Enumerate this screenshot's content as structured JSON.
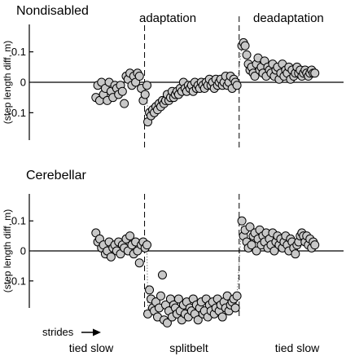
{
  "panel_labels": [
    "Nondisabled",
    "Cerebellar"
  ],
  "phase_labels": {
    "adaptation": "adaptation",
    "deadaptation": "deadaptation"
  },
  "bottom_labels": {
    "tied_slow_1": "tied slow",
    "splitbelt": "splitbelt",
    "tied_slow_2": "tied slow"
  },
  "strides_label": "strides",
  "style": {
    "marker_fill": "#c8c8c8",
    "marker_stroke": "#000000"
  },
  "chart_data": [
    {
      "type": "scatter",
      "title": "Nondisabled",
      "ylabel": "(step length diff, m)",
      "yticks": [
        0.1,
        0,
        -0.1
      ],
      "ytick_labels": [
        "0.1",
        "0",
        "-0.1"
      ],
      "ylim": [
        -0.19,
        0.19
      ],
      "xlim": [
        0,
        100
      ],
      "phase_boundaries": [
        33,
        68
      ],
      "series": [
        {
          "points": [
            [
              15,
              -0.05
            ],
            [
              15.7,
              -0.01
            ],
            [
              16.4,
              -0.06
            ],
            [
              17.1,
              0.0
            ],
            [
              17.8,
              -0.04
            ],
            [
              18.5,
              -0.02
            ],
            [
              19.2,
              -0.06
            ],
            [
              19.9,
              0.0
            ],
            [
              20.6,
              -0.03
            ],
            [
              21.3,
              -0.05
            ],
            [
              22,
              -0.01
            ],
            [
              22.7,
              -0.02
            ],
            [
              23.4,
              -0.04
            ],
            [
              24.1,
              -0.01
            ],
            [
              24.8,
              -0.03
            ],
            [
              25.5,
              -0.07
            ],
            [
              26.2,
              0.02
            ],
            [
              26.9,
              0.01
            ],
            [
              27.6,
              0.03
            ],
            [
              28.3,
              -0.01
            ],
            [
              29,
              0.02
            ],
            [
              29.7,
              0.0
            ],
            [
              30.4,
              0.03
            ],
            [
              31.1,
              0.02
            ],
            [
              31.8,
              -0.02
            ],
            [
              32.5,
              -0.06
            ],
            [
              33.2,
              -0.04
            ],
            [
              33.9,
              -0.01
            ]
          ]
        },
        {
          "points": [
            [
              34.2,
              -0.13
            ],
            [
              34.8,
              -0.1
            ],
            [
              35.4,
              -0.11
            ],
            [
              36,
              -0.09
            ],
            [
              36.6,
              -0.1
            ],
            [
              37.2,
              -0.08
            ],
            [
              37.8,
              -0.09
            ],
            [
              38.4,
              -0.07
            ],
            [
              39,
              -0.08
            ],
            [
              39.6,
              -0.06
            ],
            [
              40.2,
              -0.07
            ],
            [
              40.8,
              -0.06
            ],
            [
              41.4,
              -0.04
            ],
            [
              42,
              -0.06
            ],
            [
              42.6,
              -0.05
            ],
            [
              43.2,
              -0.03
            ],
            [
              43.8,
              -0.05
            ],
            [
              44.4,
              -0.04
            ],
            [
              45,
              -0.03
            ],
            [
              45.6,
              -0.04
            ],
            [
              46.2,
              -0.02
            ],
            [
              46.8,
              -0.03
            ],
            [
              47.4,
              0.0
            ],
            [
              48,
              -0.02
            ],
            [
              48.6,
              -0.03
            ],
            [
              49.2,
              -0.01
            ],
            [
              49.8,
              -0.02
            ],
            [
              50.4,
              -0.01
            ],
            [
              51,
              -0.03
            ],
            [
              51.6,
              0.0
            ],
            [
              52.2,
              -0.02
            ],
            [
              52.8,
              -0.01
            ],
            [
              53.4,
              -0.02
            ],
            [
              54,
              0.0
            ],
            [
              54.6,
              -0.01
            ],
            [
              55.2,
              -0.02
            ],
            [
              55.8,
              0.0
            ],
            [
              56.4,
              -0.01
            ],
            [
              57,
              0.01
            ],
            [
              57.6,
              -0.01
            ],
            [
              58.2,
              0.0
            ],
            [
              58.8,
              -0.02
            ],
            [
              59.4,
              0.01
            ],
            [
              60,
              -0.01
            ],
            [
              60.6,
              0.0
            ],
            [
              61.2,
              0.01
            ],
            [
              61.8,
              -0.01
            ],
            [
              62.4,
              0.0
            ],
            [
              63,
              0.02
            ],
            [
              63.6,
              -0.01
            ],
            [
              64.2,
              0.0
            ],
            [
              64.8,
              0.02
            ],
            [
              65.4,
              -0.02
            ],
            [
              66,
              0.01
            ],
            [
              66.6,
              0.0
            ],
            [
              67.2,
              -0.01
            ]
          ]
        },
        {
          "points": [
            [
              69,
              0.12
            ],
            [
              69.6,
              0.13
            ],
            [
              70.2,
              0.12
            ],
            [
              70.8,
              0.09
            ],
            [
              71.4,
              0.06
            ],
            [
              72,
              0.04
            ],
            [
              72.6,
              0.05
            ],
            [
              73.2,
              0.03
            ],
            [
              73.8,
              0.02
            ],
            [
              74.4,
              0.06
            ],
            [
              75,
              0.08
            ],
            [
              75.6,
              0.04
            ],
            [
              76.2,
              0.05
            ],
            [
              76.8,
              0.03
            ],
            [
              77.4,
              0.07
            ],
            [
              78,
              0.02
            ],
            [
              78.6,
              0.05
            ],
            [
              79.2,
              0.04
            ],
            [
              79.8,
              0.03
            ],
            [
              80.4,
              0.06
            ],
            [
              81,
              0.02
            ],
            [
              81.6,
              0.04
            ],
            [
              82.2,
              0.05
            ],
            [
              82.8,
              0.01
            ],
            [
              83.4,
              0.03
            ],
            [
              84,
              0.06
            ],
            [
              84.6,
              0.02
            ],
            [
              85.2,
              0.04
            ],
            [
              85.8,
              0.03
            ],
            [
              86.4,
              0.05
            ],
            [
              87,
              0.01
            ],
            [
              87.6,
              0.04
            ],
            [
              88.2,
              0.02
            ],
            [
              88.8,
              0.03
            ],
            [
              89.4,
              0.05
            ],
            [
              90,
              0.03
            ],
            [
              90.6,
              0.04
            ],
            [
              91.2,
              0.02
            ],
            [
              91.8,
              0.03
            ],
            [
              92.4,
              0.04
            ],
            [
              93,
              0.03
            ],
            [
              93.6,
              0.02
            ],
            [
              94.2,
              0.03
            ],
            [
              94.8,
              0.04
            ],
            [
              95.4,
              0.03
            ],
            [
              96,
              0.03
            ]
          ]
        }
      ]
    },
    {
      "type": "scatter",
      "title": "Cerebellar",
      "ylabel": "(step length diff, m)",
      "yticks": [
        0.1,
        0,
        -0.1
      ],
      "ytick_labels": [
        "0.1",
        "0",
        "-0.1"
      ],
      "ylim": [
        -0.19,
        0.19
      ],
      "xlim": [
        0,
        100
      ],
      "phase_boundaries": [
        33,
        68
      ],
      "series": [
        {
          "points": [
            [
              15,
              0.06
            ],
            [
              15.7,
              0.03
            ],
            [
              16.4,
              0.04
            ],
            [
              17.1,
              0.01
            ],
            [
              17.8,
              0.02
            ],
            [
              18.5,
              -0.01
            ],
            [
              19.2,
              0.0
            ],
            [
              19.9,
              0.03
            ],
            [
              20.6,
              -0.02
            ],
            [
              21.3,
              0.01
            ],
            [
              22,
              0.02
            ],
            [
              22.7,
              0.0
            ],
            [
              23.4,
              0.03
            ],
            [
              24.1,
              -0.01
            ],
            [
              24.8,
              0.02
            ],
            [
              25.5,
              0.01
            ],
            [
              26.2,
              0.04
            ],
            [
              26.9,
              0.0
            ],
            [
              27.6,
              0.05
            ],
            [
              28.3,
              0.02
            ],
            [
              29,
              -0.01
            ],
            [
              29.7,
              0.03
            ],
            [
              30.4,
              0.0
            ],
            [
              31.1,
              -0.04
            ],
            [
              31.8,
              0.02
            ],
            [
              32.5,
              0.03
            ],
            [
              33.2,
              0.01
            ],
            [
              33.9,
              0.02
            ]
          ]
        },
        {
          "points": [
            [
              34.2,
              -0.21
            ],
            [
              34.8,
              -0.13
            ],
            [
              35.4,
              -0.16
            ],
            [
              36,
              -0.19
            ],
            [
              36.6,
              -0.2
            ],
            [
              37.2,
              -0.17
            ],
            [
              37.8,
              -0.22
            ],
            [
              38.4,
              -0.19
            ],
            [
              39,
              -0.15
            ],
            [
              39.6,
              -0.08
            ],
            [
              40.2,
              -0.23
            ],
            [
              40.8,
              -0.18
            ],
            [
              41.4,
              -0.24
            ],
            [
              42,
              -0.2
            ],
            [
              42.6,
              -0.16
            ],
            [
              43.2,
              -0.22
            ],
            [
              43.8,
              -0.18
            ],
            [
              44.4,
              -0.19
            ],
            [
              45,
              -0.21
            ],
            [
              45.6,
              -0.16
            ],
            [
              46.2,
              -0.2
            ],
            [
              46.8,
              -0.23
            ],
            [
              47.4,
              -0.18
            ],
            [
              48,
              -0.21
            ],
            [
              48.6,
              -0.17
            ],
            [
              49.2,
              -0.22
            ],
            [
              49.8,
              -0.19
            ],
            [
              50.4,
              -0.2
            ],
            [
              51,
              -0.16
            ],
            [
              51.6,
              -0.21
            ],
            [
              52.2,
              -0.18
            ],
            [
              52.8,
              -0.23
            ],
            [
              53.4,
              -0.19
            ],
            [
              54,
              -0.17
            ],
            [
              54.6,
              -0.21
            ],
            [
              55.2,
              -0.2
            ],
            [
              55.8,
              -0.16
            ],
            [
              56.4,
              -0.22
            ],
            [
              57,
              -0.18
            ],
            [
              57.6,
              -0.2
            ],
            [
              58.2,
              -0.17
            ],
            [
              58.8,
              -0.21
            ],
            [
              59.4,
              -0.19
            ],
            [
              60,
              -0.16
            ],
            [
              60.6,
              -0.2
            ],
            [
              61.2,
              -0.18
            ],
            [
              61.8,
              -0.22
            ],
            [
              62.4,
              -0.17
            ],
            [
              63,
              -0.19
            ],
            [
              63.6,
              -0.15
            ],
            [
              64.2,
              -0.2
            ],
            [
              64.8,
              -0.18
            ],
            [
              65.4,
              -0.17
            ],
            [
              66,
              -0.16
            ],
            [
              66.6,
              -0.19
            ],
            [
              67.2,
              -0.15
            ]
          ]
        },
        {
          "points": [
            [
              69,
              0.1
            ],
            [
              69.6,
              0.05
            ],
            [
              70.2,
              0.07
            ],
            [
              70.8,
              0.03
            ],
            [
              71.4,
              0.01
            ],
            [
              72,
              0.08
            ],
            [
              72.6,
              0.02
            ],
            [
              73.2,
              0.05
            ],
            [
              73.8,
              0.06
            ],
            [
              74.4,
              0.0
            ],
            [
              75,
              0.04
            ],
            [
              75.6,
              0.07
            ],
            [
              76.2,
              0.02
            ],
            [
              76.8,
              0.05
            ],
            [
              77.4,
              0.03
            ],
            [
              78,
              0.06
            ],
            [
              78.6,
              0.01
            ],
            [
              79.2,
              0.04
            ],
            [
              79.8,
              0.02
            ],
            [
              80.4,
              0.06
            ],
            [
              81,
              0.0
            ],
            [
              81.6,
              0.03
            ],
            [
              82.2,
              0.05
            ],
            [
              82.8,
              0.02
            ],
            [
              83.4,
              0.04
            ],
            [
              84,
              0.01
            ],
            [
              84.6,
              0.03
            ],
            [
              85.2,
              0.05
            ],
            [
              85.8,
              0.02
            ],
            [
              86.4,
              0.0
            ],
            [
              87,
              0.04
            ],
            [
              87.6,
              0.03
            ],
            [
              88.2,
              0.01
            ],
            [
              88.8,
              -0.01
            ],
            [
              89.4,
              0.02
            ],
            [
              90,
              0.03
            ],
            [
              90.6,
              0.05
            ],
            [
              91.2,
              0.06
            ],
            [
              91.8,
              0.05
            ],
            [
              92.4,
              0.03
            ],
            [
              93,
              0.05
            ],
            [
              93.6,
              0.02
            ],
            [
              94.2,
              0.04
            ],
            [
              94.8,
              0.01
            ],
            [
              95.4,
              0.03
            ],
            [
              96,
              0.02
            ]
          ]
        }
      ]
    }
  ]
}
